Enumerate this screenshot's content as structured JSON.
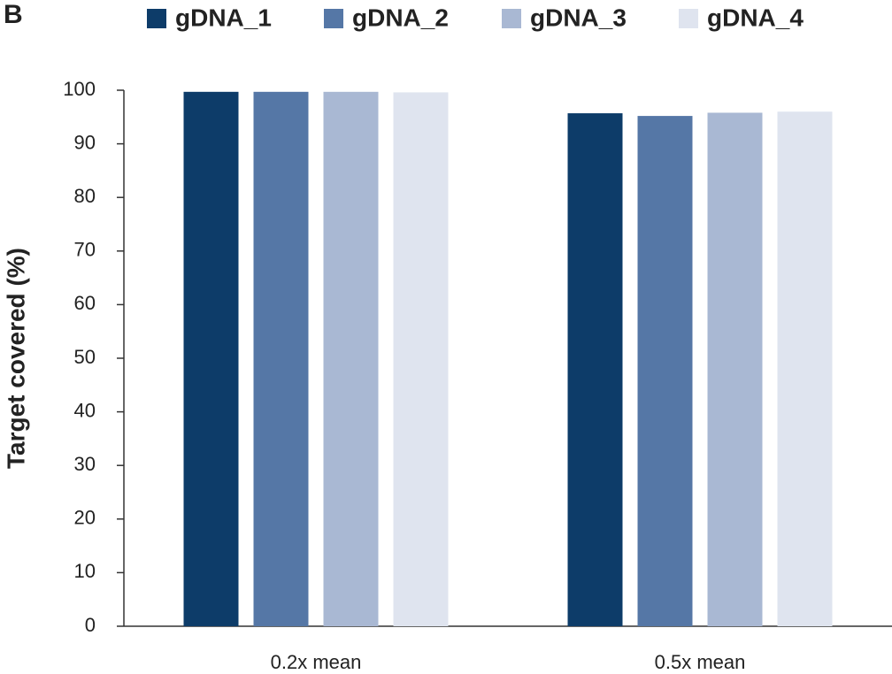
{
  "chart_data": {
    "type": "bar",
    "panel_label": "B",
    "y_label": "Target covered (%)",
    "categories": [
      "0.2x mean",
      "0.5x mean"
    ],
    "series": [
      {
        "name": "gDNA_1",
        "color": "#0d3c69",
        "values": [
          99.7,
          95.7
        ]
      },
      {
        "name": "gDNA_2",
        "color": "#5577a6",
        "values": [
          99.7,
          95.2
        ]
      },
      {
        "name": "gDNA_3",
        "color": "#a9b8d3",
        "values": [
          99.7,
          95.8
        ]
      },
      {
        "name": "gDNA_4",
        "color": "#dfe4ef",
        "values": [
          99.6,
          96.0
        ]
      }
    ],
    "ylim": [
      0,
      100
    ],
    "yticks": [
      0,
      10,
      20,
      30,
      40,
      50,
      60,
      70,
      80,
      90,
      100
    ],
    "grid": false
  }
}
